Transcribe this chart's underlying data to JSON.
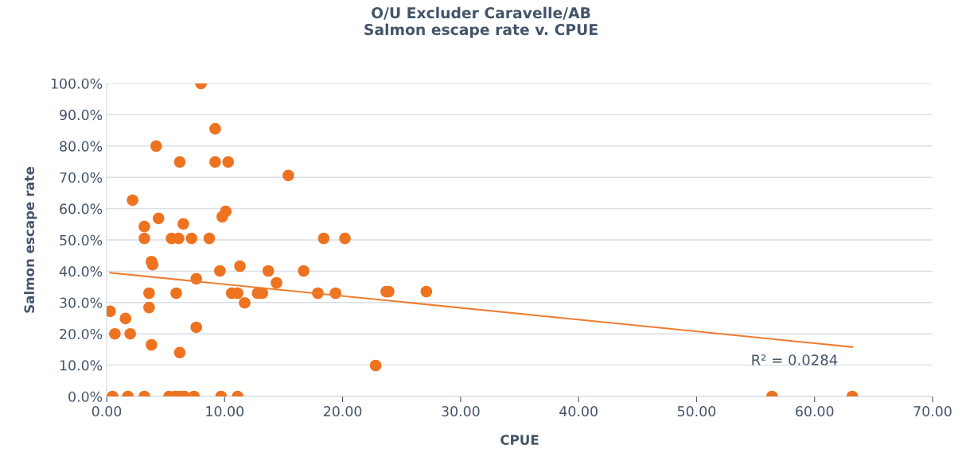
{
  "chart_data": {
    "type": "scatter",
    "title": "O/U Excluder Caravelle/AB\nSalmon escape rate v. CPUE",
    "xlabel": "CPUE",
    "ylabel": "Salmon escape rate",
    "series": [
      {
        "color": "#ee7320",
        "x": [
          0.3,
          0.7,
          1.6,
          2.2,
          2.0,
          3.2,
          3.2,
          3.6,
          3.6,
          3.8,
          3.9,
          3.8,
          4.2,
          4.4,
          5.5,
          6.1,
          5.9,
          6.2,
          6.2,
          6.5,
          7.2,
          7.6,
          7.6,
          8.0,
          8.7,
          9.2,
          9.2,
          9.6,
          9.8,
          10.1,
          10.3,
          10.6,
          11.1,
          11.3,
          11.7,
          12.8,
          13.2,
          13.7,
          14.4,
          15.4,
          16.7,
          17.9,
          18.4,
          19.4,
          20.2,
          22.8,
          23.7,
          23.9,
          27.1,
          0.5,
          1.8,
          3.2,
          5.3,
          5.8,
          6.2,
          6.6,
          7.4,
          9.7,
          11.1,
          56.4,
          63.2
        ],
        "values": [
          27.2,
          20.0,
          24.9,
          62.7,
          20.0,
          50.5,
          54.3,
          33.0,
          28.4,
          43.1,
          42.1,
          16.5,
          80.0,
          56.9,
          50.5,
          50.5,
          33.0,
          14.0,
          74.9,
          55.1,
          50.5,
          37.6,
          22.1,
          100,
          50.5,
          85.5,
          74.9,
          40.1,
          57.4,
          59.1,
          74.9,
          33.0,
          33.0,
          41.6,
          29.9,
          33.0,
          33.0,
          40.1,
          36.3,
          70.6,
          40.1,
          33.0,
          50.5,
          33.0,
          50.5,
          9.9,
          33.5,
          33.5,
          33.5,
          0,
          0,
          0,
          0,
          0,
          0,
          0,
          0,
          0,
          0,
          0,
          0
        ]
      },
      {
        "type": "line",
        "color": "#ed7d31",
        "marker": "none",
        "x": [
          0.3,
          63.2
        ],
        "values": [
          39.5,
          15.8
        ]
      }
    ],
    "annotations": [
      "R² = 0.0284"
    ],
    "xlim": [
      0,
      70
    ],
    "xticks": [
      {
        "value": 0,
        "label": "0.00"
      },
      {
        "value": 10,
        "label": "10.00"
      },
      {
        "value": 20,
        "label": "20.00"
      },
      {
        "value": 30,
        "label": "30.00"
      },
      {
        "value": 40,
        "label": "40.00"
      },
      {
        "value": 50,
        "label": "50.00"
      },
      {
        "value": 60,
        "label": "60.00"
      },
      {
        "value": 70,
        "label": "70.00"
      }
    ],
    "ylim": [
      0,
      100
    ],
    "yticks": [
      {
        "value": 0,
        "label": "0.0%"
      },
      {
        "value": 10,
        "label": "10.0%"
      },
      {
        "value": 20,
        "label": "20.0%"
      },
      {
        "value": 30,
        "label": "30.0%"
      },
      {
        "value": 40,
        "label": "40.0%"
      },
      {
        "value": 50,
        "label": "50.0%"
      },
      {
        "value": 60,
        "label": "60.0%"
      },
      {
        "value": 70,
        "label": "70.0%"
      },
      {
        "value": 80,
        "label": "80.0%"
      },
      {
        "value": 90,
        "label": "90.0%"
      },
      {
        "value": 100,
        "label": "100.0%"
      }
    ],
    "grid": "y",
    "marker": "circle"
  }
}
